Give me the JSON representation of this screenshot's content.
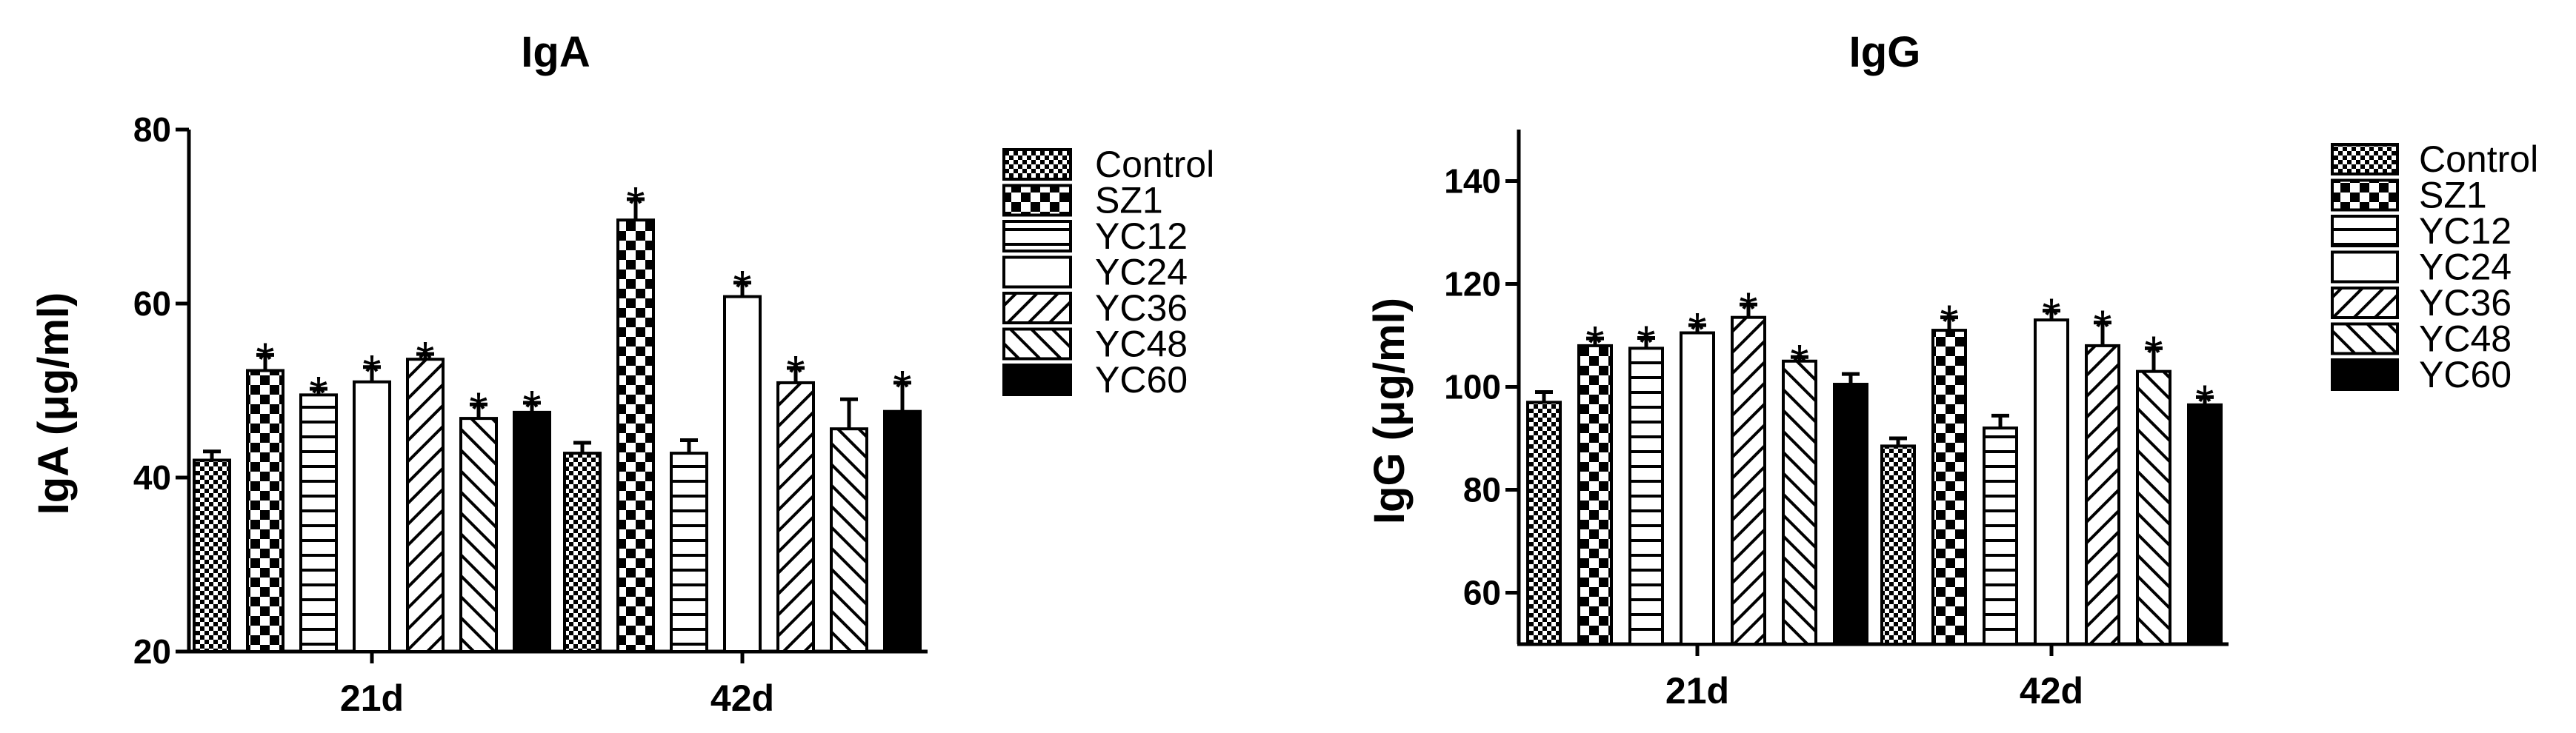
{
  "chart_data": [
    {
      "type": "bar",
      "title": "IgA",
      "xlabel": "",
      "ylabel": "IgA (μg/ml)",
      "ylim": [
        20,
        80
      ],
      "yticks": [
        20,
        40,
        60,
        80
      ],
      "categories": [
        "21d",
        "42d"
      ],
      "grid": false,
      "legend_placement": "right",
      "series": [
        {
          "name": "Control",
          "pattern": "checker-fine",
          "values": [
            42,
            42.8
          ],
          "errors": [
            1.0,
            1.2
          ],
          "significant": [
            false,
            false
          ]
        },
        {
          "name": "SZ1",
          "pattern": "checker-coarse",
          "values": [
            52.3,
            69.6
          ],
          "errors": [
            1.8,
            2.4
          ],
          "significant": [
            true,
            true
          ]
        },
        {
          "name": "YC12",
          "pattern": "horizontal-lines",
          "values": [
            49.5,
            42.8
          ],
          "errors": [
            0.7,
            1.5
          ],
          "significant": [
            true,
            false
          ]
        },
        {
          "name": "YC24",
          "pattern": "empty",
          "values": [
            51,
            60.8
          ],
          "errors": [
            1.7,
            1.6
          ],
          "significant": [
            true,
            true
          ]
        },
        {
          "name": "YC36",
          "pattern": "diagonal-up",
          "values": [
            53.6,
            50.9
          ],
          "errors": [
            0.6,
            1.7
          ],
          "significant": [
            true,
            true
          ]
        },
        {
          "name": "YC48",
          "pattern": "diagonal-down",
          "values": [
            46.8,
            45.6
          ],
          "errors": [
            1.6,
            3.4
          ],
          "significant": [
            true,
            false
          ]
        },
        {
          "name": "YC60",
          "pattern": "solid",
          "values": [
            47.5,
            47.6
          ],
          "errors": [
            1.1,
            3.3
          ],
          "significant": [
            true,
            true
          ]
        }
      ]
    },
    {
      "type": "bar",
      "title": "IgG",
      "xlabel": "",
      "ylabel": "IgG (μg/ml)",
      "ylim": [
        50,
        150
      ],
      "yticks": [
        60,
        80,
        100,
        120,
        140
      ],
      "categories": [
        "21d",
        "42d"
      ],
      "grid": false,
      "legend_placement": "right",
      "series": [
        {
          "name": "Control",
          "pattern": "checker-fine",
          "values": [
            97,
            88.5
          ],
          "errors": [
            2.0,
            1.5
          ],
          "significant": [
            false,
            false
          ]
        },
        {
          "name": "SZ1",
          "pattern": "checker-coarse",
          "values": [
            108,
            111
          ],
          "errors": [
            1.4,
            2.5
          ],
          "significant": [
            true,
            true
          ]
        },
        {
          "name": "YC12",
          "pattern": "horizontal-lines",
          "values": [
            107.5,
            92
          ],
          "errors": [
            2.0,
            2.4
          ],
          "significant": [
            true,
            false
          ]
        },
        {
          "name": "YC24",
          "pattern": "empty",
          "values": [
            110.5,
            113
          ],
          "errors": [
            1.5,
            1.8
          ],
          "significant": [
            true,
            true
          ]
        },
        {
          "name": "YC36",
          "pattern": "diagonal-up",
          "values": [
            113.5,
            108
          ],
          "errors": [
            2.5,
            4.5
          ],
          "significant": [
            true,
            true
          ]
        },
        {
          "name": "YC48",
          "pattern": "diagonal-down",
          "values": [
            105,
            103
          ],
          "errors": [
            0.8,
            4.5
          ],
          "significant": [
            true,
            true
          ]
        },
        {
          "name": "YC60",
          "pattern": "solid",
          "values": [
            100.5,
            96.5
          ],
          "errors": [
            2.0,
            1.5
          ],
          "significant": [
            false,
            true
          ]
        }
      ]
    }
  ],
  "significance_marker": "*"
}
